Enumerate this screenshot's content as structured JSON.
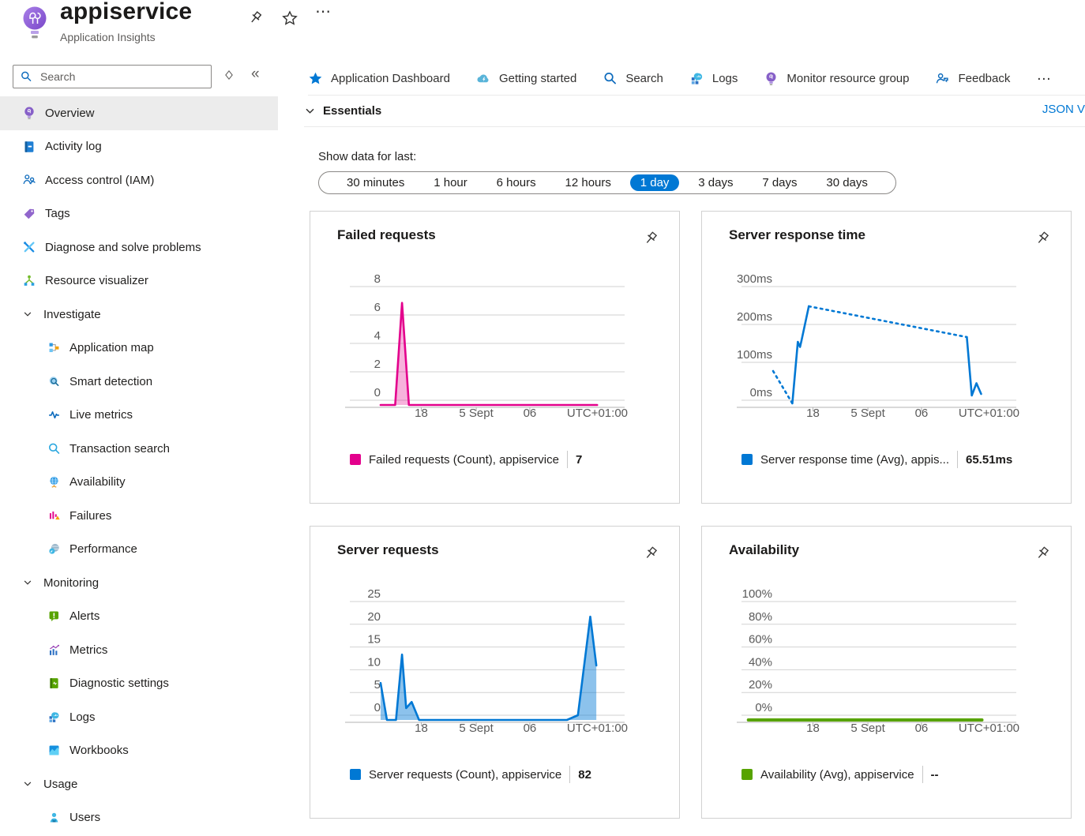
{
  "header": {
    "title": "appiservice",
    "subtitle": "Application Insights"
  },
  "sidebar": {
    "search_placeholder": "Search",
    "collapse_glyph": "«",
    "items": [
      {
        "label": "Overview",
        "icon": "lightbulb-icon",
        "type": "item",
        "selected": true
      },
      {
        "label": "Activity log",
        "icon": "activity-log-icon",
        "type": "item"
      },
      {
        "label": "Access control (IAM)",
        "icon": "access-control-icon",
        "type": "item"
      },
      {
        "label": "Tags",
        "icon": "tag-icon",
        "type": "item"
      },
      {
        "label": "Diagnose and solve problems",
        "icon": "diagnose-icon",
        "type": "item"
      },
      {
        "label": "Resource visualizer",
        "icon": "resource-visualizer-icon",
        "type": "item"
      },
      {
        "label": "Investigate",
        "icon": "chevron-down-icon",
        "type": "section"
      },
      {
        "label": "Application map",
        "icon": "application-map-icon",
        "type": "subitem"
      },
      {
        "label": "Smart detection",
        "icon": "smart-detection-icon",
        "type": "subitem"
      },
      {
        "label": "Live metrics",
        "icon": "live-metrics-icon",
        "type": "subitem"
      },
      {
        "label": "Transaction search",
        "icon": "transaction-search-icon",
        "type": "subitem"
      },
      {
        "label": "Availability",
        "icon": "availability-icon",
        "type": "subitem"
      },
      {
        "label": "Failures",
        "icon": "failures-icon",
        "type": "subitem"
      },
      {
        "label": "Performance",
        "icon": "performance-icon",
        "type": "subitem"
      },
      {
        "label": "Monitoring",
        "icon": "chevron-down-icon",
        "type": "section"
      },
      {
        "label": "Alerts",
        "icon": "alerts-icon",
        "type": "subitem"
      },
      {
        "label": "Metrics",
        "icon": "metrics-icon",
        "type": "subitem"
      },
      {
        "label": "Diagnostic settings",
        "icon": "diagnostic-settings-icon",
        "type": "subitem"
      },
      {
        "label": "Logs",
        "icon": "logs-icon",
        "type": "subitem"
      },
      {
        "label": "Workbooks",
        "icon": "workbooks-icon",
        "type": "subitem"
      },
      {
        "label": "Usage",
        "icon": "chevron-down-icon",
        "type": "section"
      },
      {
        "label": "Users",
        "icon": "users-icon",
        "type": "subitem"
      }
    ]
  },
  "toolbar": {
    "items": [
      {
        "label": "Application Dashboard",
        "icon": "star-icon"
      },
      {
        "label": "Getting started",
        "icon": "cloud-icon"
      },
      {
        "label": "Search",
        "icon": "search-icon"
      },
      {
        "label": "Logs",
        "icon": "logs-icon"
      },
      {
        "label": "Monitor resource group",
        "icon": "lightbulb-icon"
      },
      {
        "label": "Feedback",
        "icon": "feedback-icon"
      }
    ],
    "more_glyph": "…"
  },
  "essentials": {
    "label": "Essentials",
    "json_view_label": "JSON V"
  },
  "time_range": {
    "label": "Show data for last:",
    "options": [
      "30 minutes",
      "1 hour",
      "6 hours",
      "12 hours",
      "1 day",
      "3 days",
      "7 days",
      "30 days"
    ],
    "selected": "1 day"
  },
  "chart_data": [
    {
      "type": "area",
      "title": "Failed requests",
      "color": "#e3008c",
      "fill": "rgba(227,0,140,0.3)",
      "ylim": [
        0,
        8
      ],
      "y_ticks": [
        {
          "value": 8,
          "label": "8"
        },
        {
          "value": 6,
          "label": "6"
        },
        {
          "value": 4,
          "label": "4"
        },
        {
          "value": 2,
          "label": "2"
        },
        {
          "value": 0,
          "label": "0"
        }
      ],
      "x_ticks": [
        {
          "pos": 0.26,
          "label": "18"
        },
        {
          "pos": 0.46,
          "label": "5 Sept"
        },
        {
          "pos": 0.655,
          "label": "06"
        },
        {
          "pos": 1,
          "label": "UTC+01:00",
          "align": "end"
        }
      ],
      "grid": true,
      "stroke_width": 2.6,
      "series": [
        {
          "name": "Failed requests (Count), appiservice",
          "points": [
            [
              0.112,
              0
            ],
            [
              0.165,
              0
            ],
            [
              0.19,
              6.9
            ],
            [
              0.215,
              0
            ],
            [
              0.9,
              0
            ]
          ]
        }
      ],
      "legend": {
        "label": "Failed requests (Count), appiservice",
        "value": "7"
      }
    },
    {
      "type": "line",
      "title": "Server response time",
      "color": "#0078d4",
      "ylim": [
        0,
        300
      ],
      "y_ticks": [
        {
          "value": 300,
          "label": "300ms"
        },
        {
          "value": 200,
          "label": "200ms"
        },
        {
          "value": 100,
          "label": "100ms"
        },
        {
          "value": 0,
          "label": "0ms"
        }
      ],
      "x_ticks": [
        {
          "pos": 0.26,
          "label": "18"
        },
        {
          "pos": 0.46,
          "label": "5 Sept"
        },
        {
          "pos": 0.655,
          "label": "06"
        },
        {
          "pos": 1,
          "label": "UTC+01:00",
          "align": "end"
        }
      ],
      "grid": true,
      "stroke_width": 2.6,
      "segments": [
        {
          "style": "dotted",
          "points": [
            [
              0.115,
              86
            ],
            [
              0.185,
              4
            ]
          ]
        },
        {
          "style": "solid",
          "points": [
            [
              0.185,
              4
            ],
            [
              0.205,
              160
            ],
            [
              0.213,
              147
            ],
            [
              0.218,
              162
            ],
            [
              0.245,
              250
            ]
          ]
        },
        {
          "style": "dotted",
          "points": [
            [
              0.245,
              250
            ],
            [
              0.82,
              172
            ]
          ]
        },
        {
          "style": "solid",
          "points": [
            [
              0.82,
              172
            ],
            [
              0.838,
              24
            ],
            [
              0.855,
              55
            ],
            [
              0.872,
              28
            ]
          ]
        }
      ],
      "legend": {
        "label": "Server response time (Avg), appis...",
        "value": "65.51ms"
      }
    },
    {
      "type": "area",
      "title": "Server requests",
      "color": "#0078d4",
      "fill": "rgba(0,120,212,0.45)",
      "ylim": [
        0,
        25
      ],
      "y_ticks": [
        {
          "value": 25,
          "label": "25"
        },
        {
          "value": 20,
          "label": "20"
        },
        {
          "value": 15,
          "label": "15"
        },
        {
          "value": 10,
          "label": "10"
        },
        {
          "value": 5,
          "label": "5"
        },
        {
          "value": 0,
          "label": "0"
        }
      ],
      "x_ticks": [
        {
          "pos": 0.26,
          "label": "18"
        },
        {
          "pos": 0.46,
          "label": "5 Sept"
        },
        {
          "pos": 0.655,
          "label": "06"
        },
        {
          "pos": 1,
          "label": "UTC+01:00",
          "align": "end"
        }
      ],
      "grid": true,
      "stroke_width": 2.6,
      "series": [
        {
          "name": "Server requests (Count), appiservice",
          "points": [
            [
              0.112,
              7.8
            ],
            [
              0.135,
              0
            ],
            [
              0.168,
              0
            ],
            [
              0.19,
              13.8
            ],
            [
              0.205,
              2.5
            ],
            [
              0.225,
              3.8
            ],
            [
              0.252,
              0
            ],
            [
              0.79,
              0
            ],
            [
              0.83,
              1
            ],
            [
              0.875,
              21.8
            ],
            [
              0.897,
              11.5
            ]
          ]
        }
      ],
      "legend": {
        "label": "Server requests (Count), appiservice",
        "value": "82"
      }
    },
    {
      "type": "line",
      "title": "Availability",
      "color": "#57a300",
      "ylim": [
        0,
        100
      ],
      "y_ticks": [
        {
          "value": 100,
          "label": "100%"
        },
        {
          "value": 80,
          "label": "80%"
        },
        {
          "value": 60,
          "label": "60%"
        },
        {
          "value": 40,
          "label": "40%"
        },
        {
          "value": 20,
          "label": "20%"
        },
        {
          "value": 0,
          "label": "0%"
        }
      ],
      "x_ticks": [
        {
          "pos": 0.26,
          "label": "18"
        },
        {
          "pos": 0.46,
          "label": "5 Sept"
        },
        {
          "pos": 0.655,
          "label": "06"
        },
        {
          "pos": 1,
          "label": "UTC+01:00",
          "align": "end"
        }
      ],
      "grid": true,
      "stroke_width": 4,
      "series": [
        {
          "name": "Availability (Avg), appiservice",
          "points": [
            [
              0.025,
              0
            ],
            [
              0.875,
              0
            ]
          ]
        }
      ],
      "legend": {
        "label": "Availability (Avg), appiservice",
        "value": "--"
      }
    }
  ]
}
